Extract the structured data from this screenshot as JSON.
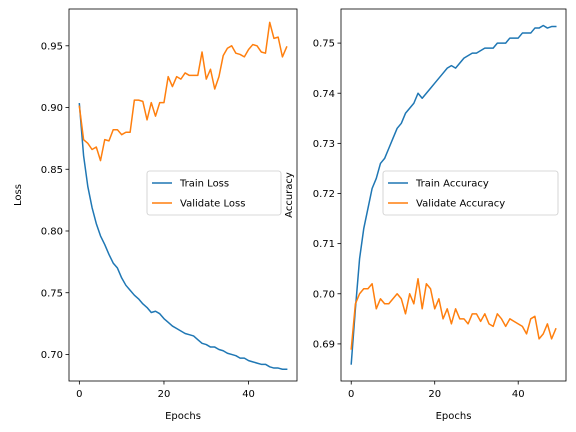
{
  "chart_data": [
    {
      "type": "line",
      "xlabel": "Epochs",
      "ylabel": "Loss",
      "xlim": [
        -2.45,
        51.45
      ],
      "ylim": [
        0.6785,
        0.9798
      ],
      "xticks": [
        0,
        20,
        40
      ],
      "yticks": [
        0.7,
        0.75,
        0.8,
        0.85,
        0.9,
        0.95
      ],
      "ytick_labels": [
        "0.70",
        "0.75",
        "0.80",
        "0.85",
        "0.90",
        "0.95"
      ],
      "grid": false,
      "legend_position": "center-right",
      "x": [
        0,
        1,
        2,
        3,
        4,
        5,
        6,
        7,
        8,
        9,
        10,
        11,
        12,
        13,
        14,
        15,
        16,
        17,
        18,
        19,
        20,
        21,
        22,
        23,
        24,
        25,
        26,
        27,
        28,
        29,
        30,
        31,
        32,
        33,
        34,
        35,
        36,
        37,
        38,
        39,
        40,
        41,
        42,
        43,
        44,
        45,
        46,
        47,
        48,
        49
      ],
      "series": [
        {
          "name": "Train Loss",
          "color": "#1f77b4",
          "values": [
            0.903,
            0.861,
            0.836,
            0.819,
            0.806,
            0.796,
            0.789,
            0.781,
            0.774,
            0.77,
            0.762,
            0.756,
            0.752,
            0.748,
            0.745,
            0.741,
            0.738,
            0.734,
            0.735,
            0.733,
            0.729,
            0.726,
            0.723,
            0.721,
            0.719,
            0.717,
            0.716,
            0.715,
            0.712,
            0.709,
            0.708,
            0.706,
            0.706,
            0.704,
            0.703,
            0.701,
            0.7,
            0.699,
            0.697,
            0.697,
            0.695,
            0.694,
            0.693,
            0.692,
            0.692,
            0.69,
            0.689,
            0.689,
            0.688,
            0.688
          ]
        },
        {
          "name": "Validate Loss",
          "color": "#ff7f0e",
          "values": [
            0.901,
            0.874,
            0.871,
            0.866,
            0.868,
            0.857,
            0.874,
            0.873,
            0.882,
            0.882,
            0.878,
            0.88,
            0.88,
            0.906,
            0.906,
            0.905,
            0.89,
            0.904,
            0.893,
            0.904,
            0.904,
            0.925,
            0.917,
            0.925,
            0.923,
            0.928,
            0.926,
            0.926,
            0.926,
            0.945,
            0.923,
            0.931,
            0.915,
            0.925,
            0.942,
            0.948,
            0.95,
            0.944,
            0.943,
            0.941,
            0.947,
            0.951,
            0.95,
            0.945,
            0.944,
            0.969,
            0.956,
            0.957,
            0.941,
            0.949
          ]
        }
      ]
    },
    {
      "type": "line",
      "xlabel": "Epochs",
      "ylabel": "Accuracy",
      "xlim": [
        -2.45,
        51.45
      ],
      "ylim": [
        0.6826,
        0.7568
      ],
      "xticks": [
        0,
        20,
        40
      ],
      "yticks": [
        0.69,
        0.7,
        0.71,
        0.72,
        0.73,
        0.74,
        0.75
      ],
      "ytick_labels": [
        "0.69",
        "0.70",
        "0.71",
        "0.72",
        "0.73",
        "0.74",
        "0.75"
      ],
      "grid": false,
      "legend_position": "center-right",
      "x": [
        0,
        1,
        2,
        3,
        4,
        5,
        6,
        7,
        8,
        9,
        10,
        11,
        12,
        13,
        14,
        15,
        16,
        17,
        18,
        19,
        20,
        21,
        22,
        23,
        24,
        25,
        26,
        27,
        28,
        29,
        30,
        31,
        32,
        33,
        34,
        35,
        36,
        37,
        38,
        39,
        40,
        41,
        42,
        43,
        44,
        45,
        46,
        47,
        48,
        49
      ],
      "series": [
        {
          "name": "Train Accuracy",
          "color": "#1f77b4",
          "values": [
            0.686,
            0.697,
            0.707,
            0.713,
            0.717,
            0.721,
            0.723,
            0.726,
            0.727,
            0.729,
            0.731,
            0.733,
            0.734,
            0.736,
            0.737,
            0.738,
            0.74,
            0.739,
            0.74,
            0.741,
            0.742,
            0.743,
            0.744,
            0.745,
            0.7455,
            0.745,
            0.746,
            0.747,
            0.7475,
            0.748,
            0.748,
            0.7485,
            0.749,
            0.749,
            0.749,
            0.75,
            0.75,
            0.75,
            0.751,
            0.751,
            0.751,
            0.752,
            0.752,
            0.752,
            0.753,
            0.753,
            0.7535,
            0.753,
            0.7533,
            0.7533
          ]
        },
        {
          "name": "Validate Accuracy",
          "color": "#ff7f0e",
          "values": [
            0.689,
            0.698,
            0.7,
            0.701,
            0.701,
            0.702,
            0.697,
            0.699,
            0.698,
            0.698,
            0.699,
            0.7,
            0.699,
            0.696,
            0.7,
            0.698,
            0.703,
            0.697,
            0.702,
            0.701,
            0.697,
            0.699,
            0.695,
            0.697,
            0.694,
            0.697,
            0.695,
            0.695,
            0.694,
            0.696,
            0.696,
            0.6945,
            0.696,
            0.694,
            0.6935,
            0.696,
            0.695,
            0.6935,
            0.695,
            0.6945,
            0.694,
            0.6935,
            0.692,
            0.695,
            0.6955,
            0.691,
            0.692,
            0.694,
            0.691,
            0.693
          ]
        }
      ]
    }
  ]
}
